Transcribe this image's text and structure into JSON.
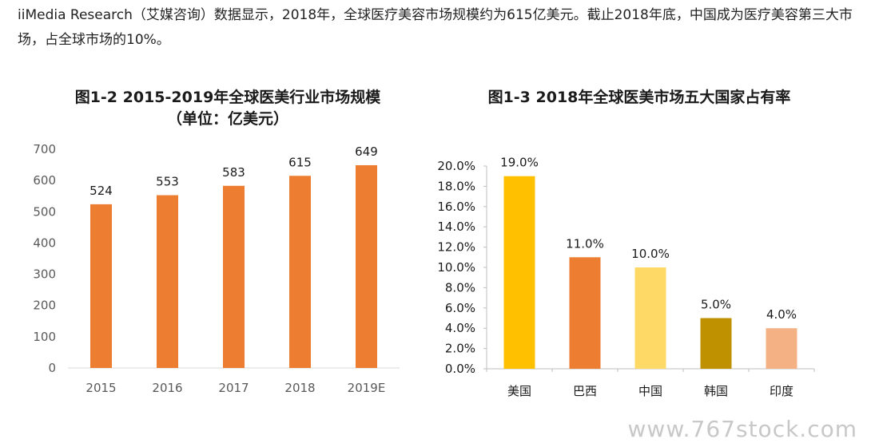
{
  "intro_text": "iiMedia Research（艾媒咨询）数据显示，2018年，全球医疗美容市场规模约为615亿美元。截止2018年底，中国成为医疗美容第三大市场，占全球市场的10%。",
  "watermark": "www.767stock.com",
  "chart_data": [
    {
      "type": "bar",
      "title": "图1-2 2015-2019年全球医美行业市场规模",
      "subtitle": "（单位：亿美元）",
      "categories": [
        "2015",
        "2016",
        "2017",
        "2018",
        "2019E"
      ],
      "values": [
        524,
        553,
        583,
        615,
        649
      ],
      "value_labels": [
        "524",
        "553",
        "583",
        "615",
        "649"
      ],
      "ylim": [
        0,
        700
      ],
      "yticks": [
        "0",
        "100",
        "200",
        "300",
        "400",
        "500",
        "600",
        "700"
      ],
      "grid": false,
      "bar_color": "#ED7D31"
    },
    {
      "type": "bar",
      "title": "图1-3 2018年全球医美市场五大国家占有率",
      "categories": [
        "美国",
        "巴西",
        "中国",
        "韩国",
        "印度"
      ],
      "values": [
        19.0,
        11.0,
        10.0,
        5.0,
        4.0
      ],
      "value_labels": [
        "19.0%",
        "11.0%",
        "10.0%",
        "5.0%",
        "4.0%"
      ],
      "ylim": [
        0,
        20
      ],
      "yticks": [
        "0.0%",
        "2.0%",
        "4.0%",
        "6.0%",
        "8.0%",
        "10.0%",
        "12.0%",
        "14.0%",
        "16.0%",
        "18.0%",
        "20.0%"
      ],
      "grid": false,
      "bar_colors": [
        "#FFC000",
        "#ED7D31",
        "#FFD966",
        "#BF9000",
        "#F4B183"
      ]
    }
  ]
}
